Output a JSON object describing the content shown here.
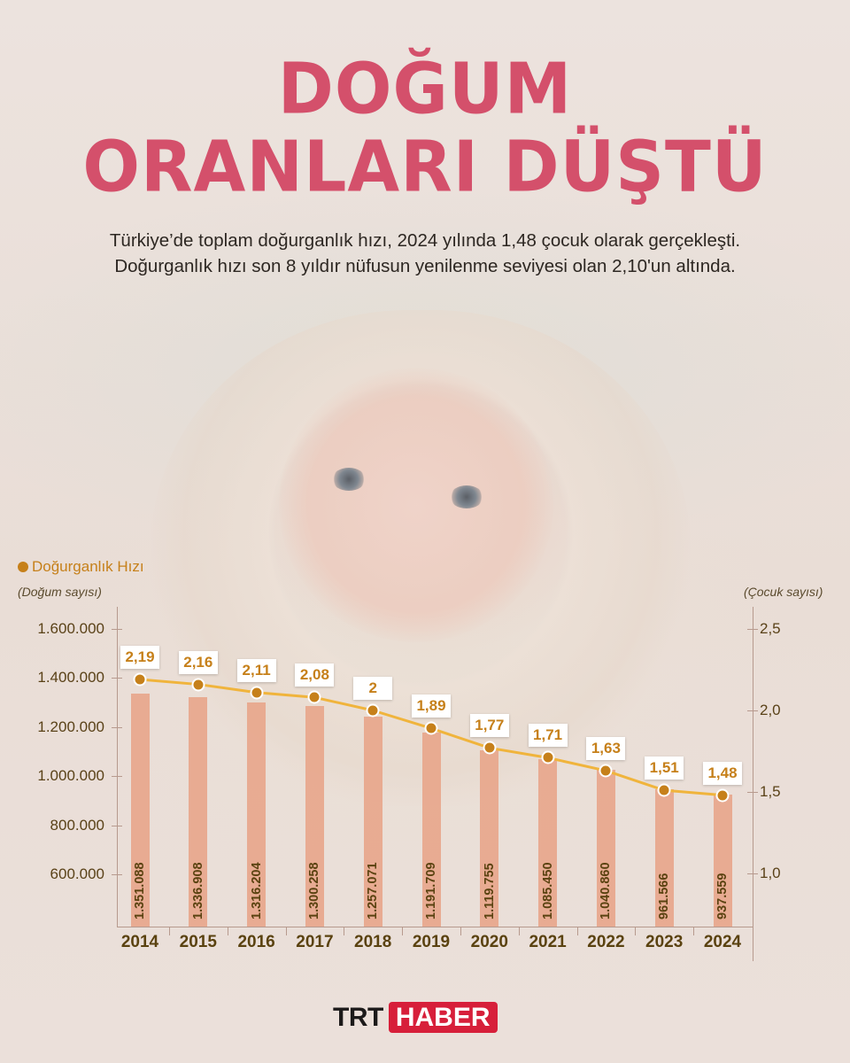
{
  "title": {
    "line1": "DOĞUM",
    "line2": "ORANLARI DÜŞTÜ"
  },
  "subtitle": "Türkiye’de toplam doğurganlık hızı, 2024 yılında 1,48 çocuk olarak gerçekleşti. Doğurganlık hızı son 8 yıldır nüfusun yenilenme seviyesi olan 2,10'un altında.",
  "legend": {
    "icon": "dot-icon",
    "label": "Doğurganlık Hızı"
  },
  "axes": {
    "left_title": "(Doğum sayısı)",
    "right_title": "(Çocuk sayısı)",
    "left_ticks": [
      "1.600.000",
      "1.400.000",
      "1.200.000",
      "1.000.000",
      "800.000",
      "600.000"
    ],
    "right_ticks": [
      "2,5",
      "2,0",
      "1,5",
      "1,0"
    ]
  },
  "colors": {
    "title": "#d4506b",
    "accent_line": "#f0b43c",
    "point": "#c6801a",
    "bar": "#e8a082",
    "text_dark": "#5a4210",
    "brand_red": "#d71f3a"
  },
  "chart_data": {
    "type": "bar",
    "title": "DOĞUM ORANLARI DÜŞTÜ",
    "categories": [
      "2014",
      "2015",
      "2016",
      "2017",
      "2018",
      "2019",
      "2020",
      "2021",
      "2022",
      "2023",
      "2024"
    ],
    "series": [
      {
        "name": "Doğum sayısı",
        "type": "bar",
        "axis": "left",
        "values": [
          1351088,
          1336908,
          1316204,
          1300258,
          1257071,
          1191709,
          1119755,
          1085450,
          1040860,
          961566,
          937559
        ],
        "labels": [
          "1.351.088",
          "1.336.908",
          "1.316.204",
          "1.300.258",
          "1.257.071",
          "1.191.709",
          "1.119.755",
          "1.085.450",
          "1.040.860",
          "961.566",
          "937.559"
        ]
      },
      {
        "name": "Doğurganlık Hızı",
        "type": "line",
        "axis": "right",
        "values": [
          2.19,
          2.16,
          2.11,
          2.08,
          2.0,
          1.89,
          1.77,
          1.71,
          1.63,
          1.51,
          1.48
        ],
        "labels": [
          "2,19",
          "2,16",
          "2,11",
          "2,08",
          "2",
          "1,89",
          "1,77",
          "1,71",
          "1,63",
          "1,51",
          "1,48"
        ]
      }
    ],
    "xlabel": "",
    "ylabel": "(Doğum sayısı)",
    "ylabel_right": "(Çocuk sayısı)",
    "ylim": [
      600000,
      1600000
    ],
    "ylim_right": [
      1.0,
      2.5
    ],
    "legend": [
      "Doğurganlık Hızı"
    ],
    "legend_position": "top-left",
    "grid": false
  },
  "footer": {
    "logo_left": "TRT",
    "logo_right": "HABER"
  }
}
